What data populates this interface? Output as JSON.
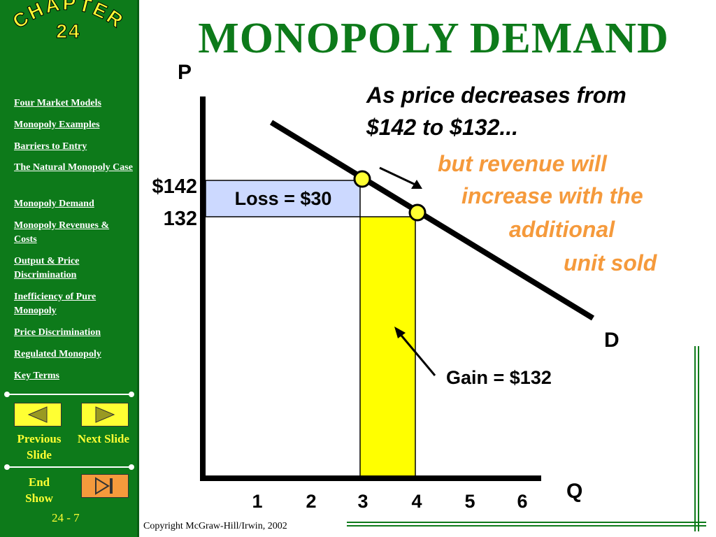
{
  "sidebar": {
    "chapter_word": "CHAPTER",
    "chapter_num": "24",
    "links": [
      "Four Market Models",
      "Monopoly Examples",
      "Barriers to Entry",
      "The Natural Monopoly Case",
      "Monopoly Demand",
      "Monopoly Revenues & Costs",
      "Output & Price Discrimination",
      "Inefficiency of Pure Monopoly",
      "Price Discrimination",
      "Regulated Monopoly",
      "Key Terms"
    ],
    "previous_label": "Previous Slide",
    "next_label": "Next Slide",
    "end_show_label": "End Show",
    "page_number": "24 - 7"
  },
  "title": "MONOPOLY DEMAND",
  "copyright": "Copyright McGraw-Hill/Irwin,  2002",
  "colors": {
    "sidebar_green": "#0d7a1a",
    "title_green": "#0d7a1a",
    "button_yellow": "#ffff33",
    "orange_text": "#f59a3c",
    "loss_box": "#ccd9ff",
    "gain_box": "#ffff00"
  },
  "chart_data": {
    "type": "line",
    "xlabel": "Q",
    "ylabel": "P",
    "curve_label": "D",
    "x_ticks": [
      "1",
      "2",
      "3",
      "4",
      "5",
      "6"
    ],
    "price_labels": [
      "$142",
      "132"
    ],
    "points": [
      {
        "q": 3,
        "p": 142
      },
      {
        "q": 4,
        "p": 132
      }
    ],
    "loss_label": "Loss = $30",
    "gain_label": "Gain = $132",
    "annotation_black": [
      "As price decreases from",
      "$142 to $132..."
    ],
    "annotation_orange": [
      "but revenue will",
      "increase with the",
      "additional",
      "unit sold"
    ]
  }
}
